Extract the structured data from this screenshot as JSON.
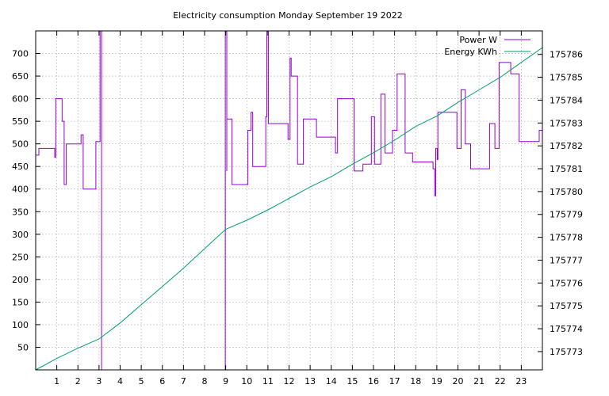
{
  "chart_data": {
    "type": "line",
    "title": "Electricity consumption Monday September 19 2022",
    "xlabel": "",
    "ylabel": "",
    "y2label": "",
    "xlim": [
      0,
      24
    ],
    "ylim": [
      0,
      750
    ],
    "y2lim": [
      175772.2,
      175787.03
    ],
    "x_ticks": [
      1,
      2,
      3,
      4,
      5,
      6,
      7,
      8,
      9,
      10,
      11,
      12,
      13,
      14,
      15,
      16,
      17,
      18,
      19,
      20,
      21,
      22,
      23
    ],
    "y_ticks": [
      50,
      100,
      150,
      200,
      250,
      300,
      350,
      400,
      450,
      500,
      550,
      600,
      650,
      700
    ],
    "y2_ticks": [
      175773,
      175774,
      175775,
      175776,
      175777,
      175778,
      175779,
      175780,
      175781,
      175782,
      175783,
      175784,
      175785,
      175786
    ],
    "grid": true,
    "legend_position": "top-right",
    "series": [
      {
        "name": "Power W",
        "axis": "y",
        "color": "#9400d3",
        "step": true,
        "x": [
          0,
          0.15,
          0.9,
          0.95,
          1.25,
          1.35,
          1.45,
          1.55,
          2.15,
          2.25,
          2.85,
          3.05,
          3.12,
          8.98,
          9.05,
          9.05,
          9.3,
          10.05,
          10.2,
          10.28,
          10.9,
          10.95,
          11.02,
          11.2,
          11.95,
          12.05,
          12.1,
          12.4,
          12.68,
          13.3,
          14.2,
          14.3,
          15.05,
          15.08,
          15.5,
          15.9,
          16.05,
          16.35,
          16.55,
          16.9,
          17.12,
          17.5,
          17.85,
          18.82,
          18.9,
          18.95,
          19.02,
          19.05,
          19.3,
          19.95,
          20.15,
          20.35,
          20.6,
          21.5,
          21.75,
          21.95,
          22.5,
          22.9,
          23.85,
          24
        ],
        "y": [
          475,
          490,
          470,
          600,
          550,
          410,
          500,
          500,
          520,
          400,
          505,
          750,
          0,
          750,
          440,
          555,
          410,
          530,
          570,
          450,
          560,
          750,
          545,
          545,
          510,
          690,
          650,
          455,
          555,
          515,
          480,
          600,
          600,
          440,
          455,
          560,
          455,
          610,
          480,
          530,
          655,
          480,
          460,
          445,
          385,
          490,
          465,
          570,
          570,
          490,
          620,
          500,
          445,
          545,
          490,
          680,
          655,
          505,
          530,
          505
        ]
      },
      {
        "name": "Energy KWh",
        "axis": "y2",
        "color": "#009e73",
        "step": false,
        "x": [
          0,
          1,
          2,
          3,
          4,
          5,
          6,
          7,
          8,
          9,
          10,
          11,
          12,
          13,
          14,
          15,
          16,
          17,
          18,
          19,
          20,
          21,
          22,
          23,
          24
        ],
        "y": [
          175772.2,
          175772.7,
          175773.15,
          175773.55,
          175774.25,
          175775.05,
          175775.85,
          175776.65,
          175777.5,
          175778.35,
          175778.75,
          175779.2,
          175779.7,
          175780.2,
          175780.65,
          175781.2,
          175781.7,
          175782.25,
          175782.85,
          175783.3,
          175783.9,
          175784.45,
          175785.0,
          175785.65,
          175786.3
        ]
      }
    ]
  }
}
